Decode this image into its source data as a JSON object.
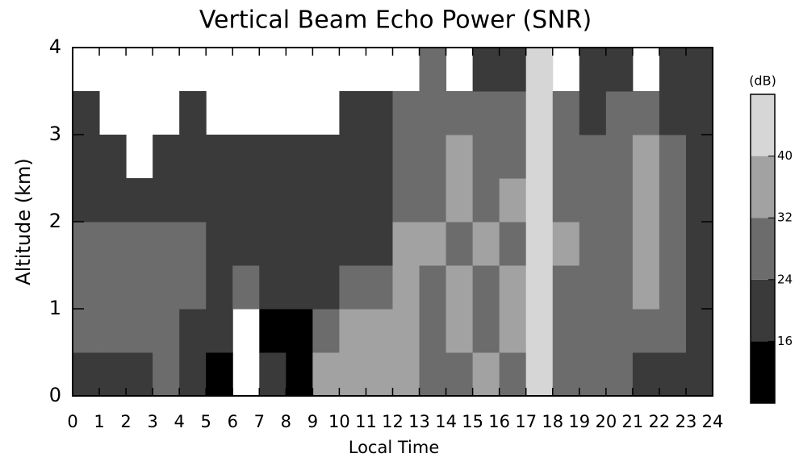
{
  "chart_data": {
    "type": "heatmap",
    "title": "Vertical Beam Echo Power (SNR)",
    "x_label": "Local Time",
    "y_label": "Altitude (km)",
    "colorbar_label": "(dB)",
    "x": [
      0.5,
      1.5,
      2.5,
      3.5,
      4.5,
      5.5,
      6.5,
      7.5,
      8.5,
      9.5,
      10.5,
      11.5,
      12.5,
      13.5,
      14.5,
      15.5,
      16.5,
      17.5,
      18.5,
      19.5,
      20.5,
      21.5,
      22.5,
      23.5
    ],
    "y": [
      0.25,
      0.75,
      1.25,
      1.75,
      2.25,
      2.75,
      3.25,
      3.75
    ],
    "z": [
      [
        22,
        20,
        22,
        24,
        18,
        14,
        null,
        20,
        14,
        34,
        36,
        36,
        34,
        30,
        28,
        34,
        30,
        44,
        30,
        28,
        26,
        22,
        20,
        22
      ],
      [
        24,
        26,
        28,
        26,
        22,
        20,
        null,
        12,
        12,
        30,
        34,
        36,
        34,
        28,
        34,
        30,
        36,
        44,
        30,
        26,
        30,
        28,
        24,
        22
      ],
      [
        26,
        28,
        28,
        28,
        26,
        22,
        24,
        20,
        20,
        22,
        26,
        30,
        34,
        30,
        34,
        30,
        36,
        44,
        30,
        28,
        26,
        34,
        26,
        22
      ],
      [
        28,
        26,
        28,
        26,
        24,
        22,
        22,
        22,
        20,
        20,
        20,
        22,
        34,
        34,
        30,
        36,
        30,
        44,
        34,
        30,
        28,
        36,
        26,
        22
      ],
      [
        22,
        20,
        20,
        20,
        20,
        20,
        20,
        20,
        20,
        20,
        20,
        20,
        30,
        28,
        36,
        30,
        34,
        44,
        30,
        26,
        28,
        34,
        24,
        20
      ],
      [
        20,
        18,
        null,
        20,
        18,
        20,
        20,
        20,
        22,
        20,
        20,
        20,
        28,
        30,
        34,
        28,
        30,
        44,
        28,
        26,
        28,
        32,
        24,
        18
      ],
      [
        18,
        null,
        null,
        null,
        18,
        null,
        null,
        null,
        null,
        null,
        16,
        16,
        28,
        28,
        30,
        28,
        30,
        44,
        28,
        22,
        24,
        26,
        22,
        18
      ],
      [
        null,
        null,
        null,
        null,
        null,
        null,
        null,
        null,
        null,
        null,
        null,
        null,
        null,
        24,
        null,
        22,
        20,
        44,
        null,
        22,
        20,
        null,
        20,
        18
      ]
    ],
    "xlim": [
      0,
      24
    ],
    "xticks": [
      0,
      1,
      2,
      3,
      4,
      5,
      6,
      7,
      8,
      9,
      10,
      11,
      12,
      13,
      14,
      15,
      16,
      17,
      18,
      19,
      20,
      21,
      22,
      23,
      24
    ],
    "ylim": [
      0,
      4
    ],
    "yticks": [
      0,
      1,
      2,
      3,
      4
    ],
    "colorbar_lim": [
      8,
      48
    ],
    "colorbar_ticks": [
      16,
      24,
      32,
      40
    ],
    "colors": [
      "#000000",
      "#3a3a3a",
      "#6c6c6c",
      "#a2a2a2",
      "#d6d6d6"
    ]
  }
}
